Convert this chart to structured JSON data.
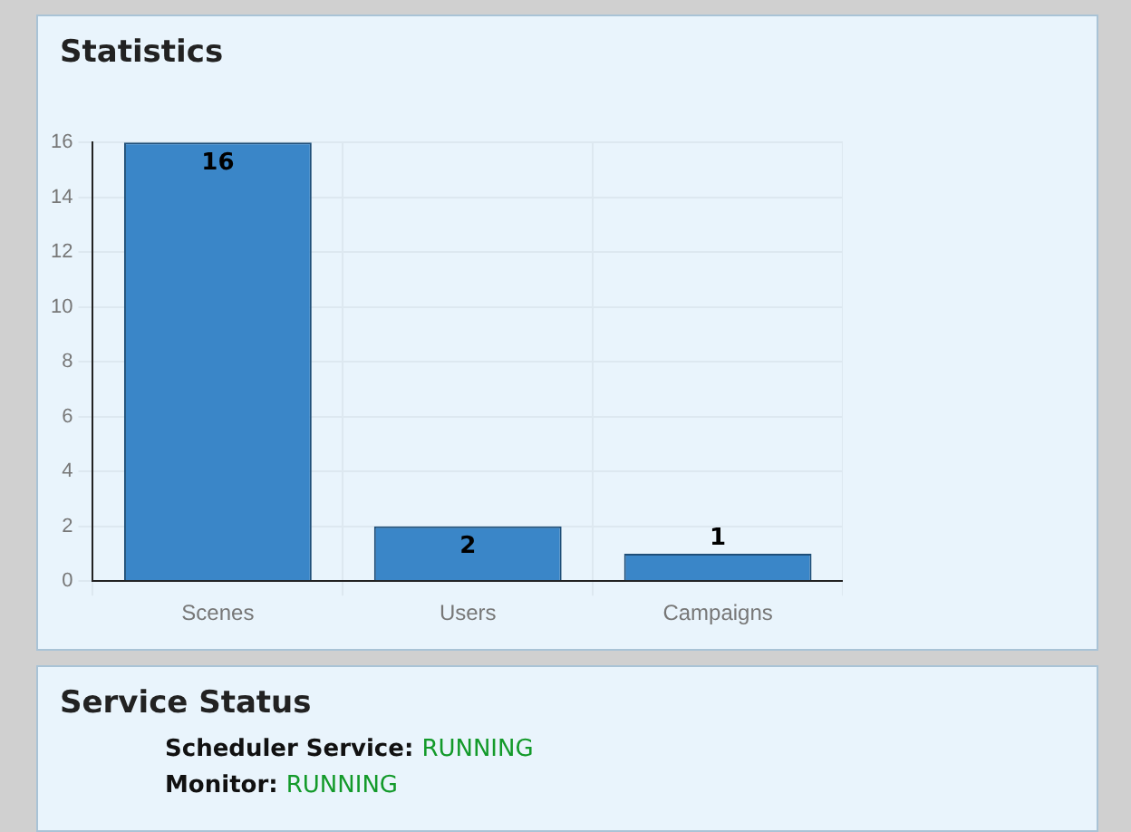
{
  "chart_data": [
    {
      "type": "bar",
      "title": "Statistics",
      "categories": [
        "Scenes",
        "Users",
        "Campaigns"
      ],
      "values": [
        16,
        2,
        1
      ],
      "color": "#3a86c8",
      "ylim": [
        0,
        16
      ],
      "yticks": [
        0,
        2,
        4,
        6,
        8,
        10,
        12,
        14,
        16
      ],
      "grid": true,
      "data_labels": true
    },
    {
      "type": "other",
      "title": "Service Status",
      "annotations": [
        "Scheduler Service: RUNNING",
        "Monitor: RUNNING"
      ]
    }
  ]
}
